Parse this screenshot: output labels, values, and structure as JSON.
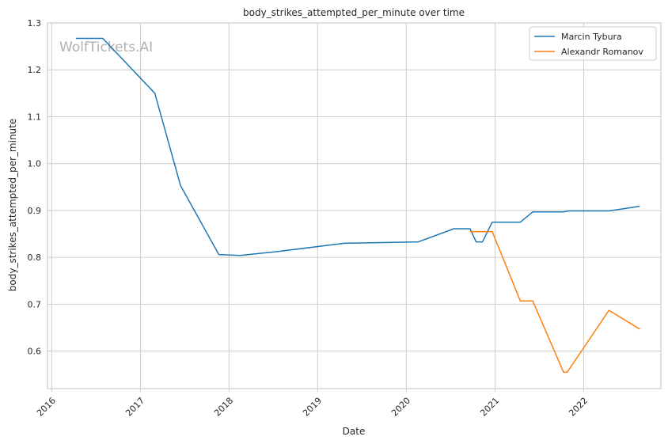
{
  "chart_data": {
    "type": "line",
    "title": "body_strikes_attempted_per_minute over time",
    "xlabel": "Date",
    "ylabel": "body_strikes_attempted_per_minute",
    "watermark": "WolfTickets.AI",
    "x_ticks": [
      "2016",
      "2017",
      "2018",
      "2019",
      "2020",
      "2021",
      "2022"
    ],
    "y_ticks": [
      "0.6",
      "0.7",
      "0.8",
      "0.9",
      "1.0",
      "1.1",
      "1.2",
      "1.3"
    ],
    "ylim": [
      0.52,
      1.3
    ],
    "xlim": [
      "2015-12-15",
      "2022-11-15"
    ],
    "grid": true,
    "legend_position": "top-right",
    "series": [
      {
        "name": "Marcin Tybura",
        "color": "#1f77b4",
        "points": [
          [
            "2016-04-10",
            1.267
          ],
          [
            "2016-07-30",
            1.267
          ],
          [
            "2017-03-01",
            1.15
          ],
          [
            "2017-06-15",
            0.953
          ],
          [
            "2017-11-20",
            0.806
          ],
          [
            "2018-02-15",
            0.804
          ],
          [
            "2018-07-15",
            0.812
          ],
          [
            "2019-04-20",
            0.83
          ],
          [
            "2020-02-20",
            0.833
          ],
          [
            "2020-07-15",
            0.861
          ],
          [
            "2020-09-20",
            0.861
          ],
          [
            "2020-10-15",
            0.833
          ],
          [
            "2020-11-10",
            0.833
          ],
          [
            "2020-12-20",
            0.875
          ],
          [
            "2021-04-15",
            0.875
          ],
          [
            "2021-06-05",
            0.897
          ],
          [
            "2021-10-10",
            0.897
          ],
          [
            "2021-11-01",
            0.899
          ],
          [
            "2022-04-15",
            0.899
          ],
          [
            "2022-08-20",
            0.909
          ]
        ]
      },
      {
        "name": "Alexandr Romanov",
        "color": "#ff7f0e",
        "points": [
          [
            "2020-09-20",
            0.855
          ],
          [
            "2020-12-20",
            0.855
          ],
          [
            "2021-04-15",
            0.707
          ],
          [
            "2021-06-05",
            0.707
          ],
          [
            "2021-10-10",
            0.555
          ],
          [
            "2021-10-25",
            0.555
          ],
          [
            "2022-04-15",
            0.687
          ],
          [
            "2022-08-20",
            0.647
          ]
        ]
      }
    ]
  }
}
